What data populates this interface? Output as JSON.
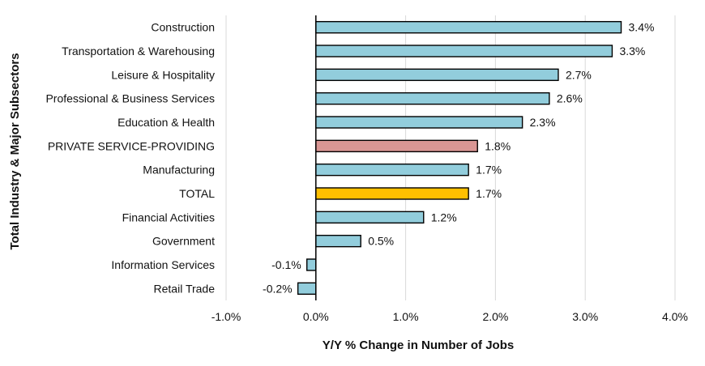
{
  "chart_data": {
    "type": "bar",
    "orientation": "horizontal",
    "title": "",
    "xlabel": "Y/Y % Change in Number of Jobs",
    "ylabel": "Total Industry & Major Subsectors",
    "xlim": [
      -1.0,
      4.0
    ],
    "xticks": [
      -1.0,
      0.0,
      1.0,
      2.0,
      3.0,
      4.0
    ],
    "xtick_labels": [
      "-1.0%",
      "0.0%",
      "1.0%",
      "2.0%",
      "3.0%",
      "4.0%"
    ],
    "grid": true,
    "legend": "none",
    "categories": [
      "Construction",
      "Transportation & Warehousing",
      "Leisure & Hospitality",
      "Professional & Business Services",
      "Education & Health",
      "PRIVATE SERVICE-PROVIDING",
      "Manufacturing",
      "TOTAL",
      "Financial Activities",
      "Government",
      "Information Services",
      "Retail Trade"
    ],
    "values": [
      3.4,
      3.3,
      2.7,
      2.6,
      2.3,
      1.8,
      1.7,
      1.7,
      1.2,
      0.5,
      -0.1,
      -0.2
    ],
    "value_labels": [
      "3.4%",
      "3.3%",
      "2.7%",
      "2.6%",
      "2.3%",
      "1.8%",
      "1.7%",
      "1.7%",
      "1.2%",
      "0.5%",
      "-0.1%",
      "-0.2%"
    ],
    "colors": [
      "#92cddc",
      "#92cddc",
      "#92cddc",
      "#92cddc",
      "#92cddc",
      "#d99694",
      "#92cddc",
      "#ffc000",
      "#92cddc",
      "#92cddc",
      "#92cddc",
      "#92cddc"
    ]
  }
}
